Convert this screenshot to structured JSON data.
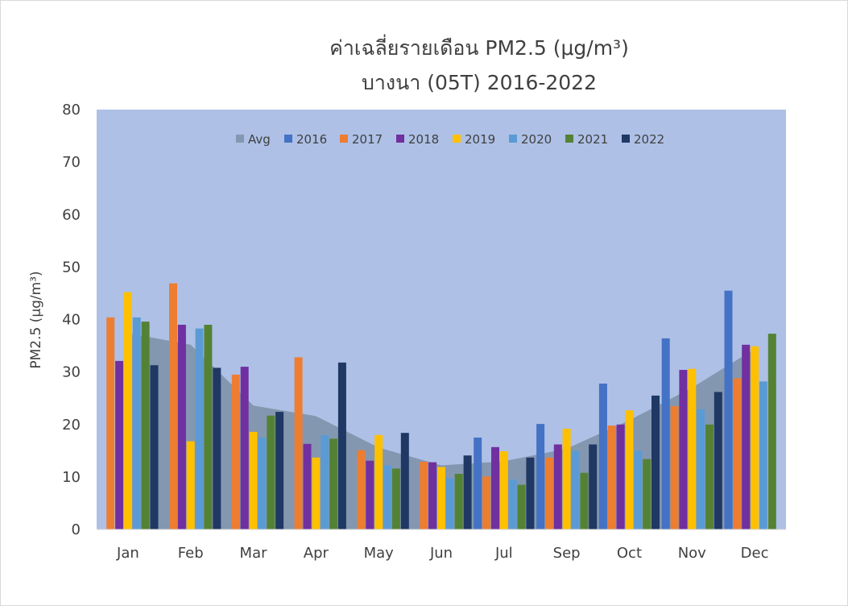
{
  "chart_data": {
    "type": "bar",
    "title_line1": "ค่าเฉลี่ยรายเดือน PM2.5 (μg/m³)",
    "title_line2": "บางนา (05T) 2016-2022",
    "ylabel": "PM2.5 (μg/m³)",
    "xlabel": "",
    "ylim": [
      0,
      80
    ],
    "yticks": [
      "0",
      "10",
      "20",
      "30",
      "40",
      "50",
      "60",
      "70",
      "80"
    ],
    "grid": false,
    "legend_position": "top",
    "plot_bg": "#aec0e6",
    "categories": [
      "Jan",
      "Feb",
      "Mar",
      "Apr",
      "May",
      "Jun",
      "Jul",
      "Sep",
      "Oct",
      "Nov",
      "Dec"
    ],
    "avg": {
      "name": "Avg",
      "color": "#8497b0",
      "values": [
        37.4,
        35.2,
        23.6,
        21.6,
        15.6,
        12.2,
        13.0,
        15.4,
        20.8,
        27.0,
        34.4
      ]
    },
    "series": [
      {
        "name": "2016",
        "color": "#4472c4",
        "values": [
          null,
          null,
          null,
          null,
          null,
          null,
          17.5,
          20.1,
          27.8,
          36.4,
          45.5
        ]
      },
      {
        "name": "2017",
        "color": "#ed7d31",
        "values": [
          40.4,
          46.9,
          29.5,
          32.8,
          15.1,
          12.9,
          10.1,
          13.7,
          19.8,
          23.5,
          28.8
        ]
      },
      {
        "name": "2018",
        "color": "#7030a0",
        "values": [
          32.1,
          39.0,
          31.0,
          16.3,
          13.1,
          12.8,
          15.7,
          16.2,
          20.0,
          30.4,
          35.2
        ]
      },
      {
        "name": "2019",
        "color": "#ffc000",
        "values": [
          45.2,
          16.8,
          18.6,
          13.7,
          18.0,
          11.9,
          14.9,
          19.2,
          22.7,
          30.6,
          34.9
        ]
      },
      {
        "name": "2020",
        "color": "#5b9bd5",
        "values": [
          40.4,
          38.3,
          17.5,
          18.0,
          12.2,
          9.8,
          9.5,
          15.0,
          15.0,
          22.9,
          28.2
        ]
      },
      {
        "name": "2021",
        "color": "#548235",
        "values": [
          39.6,
          39.0,
          21.7,
          17.3,
          11.6,
          10.6,
          8.5,
          10.8,
          13.4,
          20.0,
          37.3
        ]
      },
      {
        "name": "2022",
        "color": "#203864",
        "values": [
          31.3,
          30.8,
          22.4,
          31.8,
          18.4,
          14.1,
          13.7,
          16.2,
          25.5,
          26.2,
          null
        ]
      }
    ]
  }
}
